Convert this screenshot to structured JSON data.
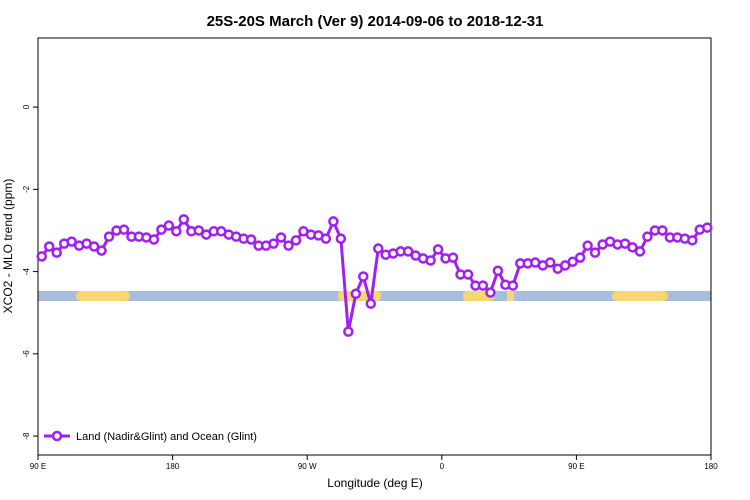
{
  "chart_data": {
    "type": "line",
    "title": "25S-20S March (Ver 9)   2014-09-06 to 2018-12-31",
    "x_label": "Longitude (deg E)",
    "y_label": "XCO2 - MLO trend (ppm)",
    "x": [
      92.5,
      97.5,
      102.5,
      107.5,
      112.5,
      117.5,
      122.5,
      127.5,
      132.5,
      137.5,
      142.5,
      147.5,
      152.5,
      157.5,
      162.5,
      167.5,
      172.5,
      177.5,
      182.5,
      187.5,
      192.5,
      197.5,
      202.5,
      207.5,
      212.5,
      217.5,
      222.5,
      227.5,
      232.5,
      237.5,
      242.5,
      247.5,
      252.5,
      257.5,
      262.5,
      267.5,
      272.5,
      277.5,
      282.5,
      287.5,
      292.5,
      297.5,
      302.5,
      307.5,
      312.5,
      317.5,
      322.5,
      327.5,
      332.5,
      337.5,
      342.5,
      347.5,
      352.5,
      357.5,
      362.5,
      367.5,
      372.5,
      377.5,
      382.5,
      387.5,
      392.5,
      397.5,
      402.5,
      407.5,
      412.5,
      417.5,
      422.5,
      427.5,
      432.5,
      437.5,
      442.5,
      447.5,
      452.5,
      457.5,
      462.5,
      467.5,
      472.5,
      477.5,
      482.5,
      487.5,
      492.5,
      497.5,
      502.5,
      507.5,
      512.5,
      517.5,
      522.5,
      527.5,
      532.5,
      537.5
    ],
    "series": [
      {
        "name": "Land (Nadir&Glint) and Ocean (Glint)",
        "color": "#a020f0",
        "values": [
          -3.63,
          -3.39,
          -3.54,
          -3.32,
          -3.27,
          -3.37,
          -3.32,
          -3.39,
          -3.49,
          -3.15,
          -3.0,
          -2.98,
          -3.15,
          -3.15,
          -3.17,
          -3.22,
          -2.98,
          -2.88,
          -3.02,
          -2.73,
          -3.02,
          -3.0,
          -3.1,
          -3.02,
          -3.02,
          -3.1,
          -3.15,
          -3.2,
          -3.22,
          -3.37,
          -3.37,
          -3.32,
          -3.17,
          -3.37,
          -3.24,
          -3.02,
          -3.1,
          -3.12,
          -3.2,
          -2.78,
          -3.2,
          -5.46,
          -4.54,
          -4.12,
          -4.78,
          -3.44,
          -3.59,
          -3.56,
          -3.51,
          -3.51,
          -3.61,
          -3.68,
          -3.73,
          -3.46,
          -3.68,
          -3.66,
          -4.07,
          -4.07,
          -4.34,
          -4.34,
          -4.51,
          -3.98,
          -4.32,
          -4.34,
          -3.8,
          -3.8,
          -3.78,
          -3.85,
          -3.78,
          -3.93,
          -3.85,
          -3.76,
          -3.66,
          -3.37,
          -3.54,
          -3.34,
          -3.27,
          -3.34,
          -3.32,
          -3.41,
          -3.51,
          -3.15,
          -3.0,
          -3.0,
          -3.17,
          -3.17,
          -3.2,
          -3.24,
          -2.98,
          -2.93
        ]
      }
    ],
    "xlim": [
      90,
      540
    ],
    "xticks": [
      {
        "value": 90,
        "label": "90 E"
      },
      180,
      {
        "value": 270,
        "label": "90 W"
      },
      {
        "value": 360,
        "label": "0"
      },
      {
        "value": 450,
        "label": "90 E"
      },
      {
        "value": 540,
        "label": "180"
      }
    ],
    "ylim": [
      1.68,
      -8.46
    ],
    "yticks": [
      0,
      -2,
      -4,
      -6,
      -8
    ],
    "legend": "bottom-left"
  }
}
